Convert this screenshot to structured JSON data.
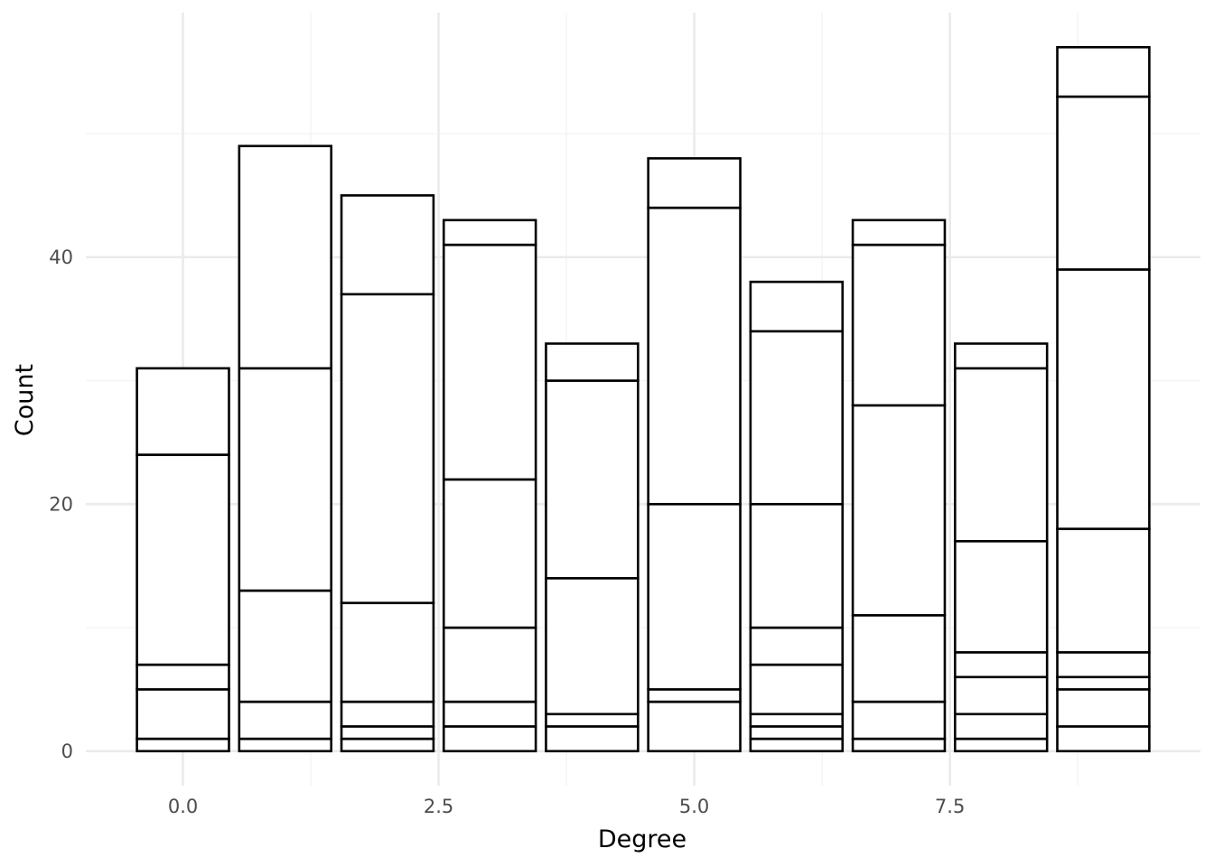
{
  "chart_data": {
    "type": "bar",
    "stacked": true,
    "title": "",
    "xlabel": "Degree",
    "ylabel": "Count",
    "x_ticks": [
      0.0,
      2.5,
      5.0,
      7.5
    ],
    "x_tick_labels": [
      "0.0",
      "2.5",
      "5.0",
      "7.5"
    ],
    "y_ticks": [
      0,
      20,
      40
    ],
    "y_tick_labels": [
      "0",
      "20",
      "40"
    ],
    "xlim": [
      -0.95,
      9.95
    ],
    "ylim": [
      -2.8,
      59.8
    ],
    "bar_width": 0.9,
    "grid": true,
    "fill_color": "#ffffff",
    "outline_color": "#000000",
    "bars": [
      {
        "x": 0,
        "segments": [
          1,
          4,
          2,
          17,
          7
        ]
      },
      {
        "x": 1,
        "segments": [
          1,
          3,
          9,
          18,
          18
        ]
      },
      {
        "x": 2,
        "segments": [
          1,
          1,
          2,
          8,
          25,
          8
        ]
      },
      {
        "x": 3,
        "segments": [
          2,
          2,
          6,
          12,
          19,
          2
        ]
      },
      {
        "x": 4,
        "segments": [
          2,
          1,
          11,
          16,
          3
        ]
      },
      {
        "x": 5,
        "segments": [
          4,
          1,
          15,
          24,
          4
        ]
      },
      {
        "x": 6,
        "segments": [
          1,
          1,
          1,
          4,
          3,
          10,
          14,
          4
        ]
      },
      {
        "x": 7,
        "segments": [
          1,
          3,
          7,
          17,
          13,
          2
        ]
      },
      {
        "x": 8,
        "segments": [
          1,
          2,
          3,
          2,
          9,
          14,
          2
        ]
      },
      {
        "x": 9,
        "segments": [
          2,
          3,
          1,
          2,
          10,
          21,
          14,
          4
        ]
      }
    ]
  }
}
